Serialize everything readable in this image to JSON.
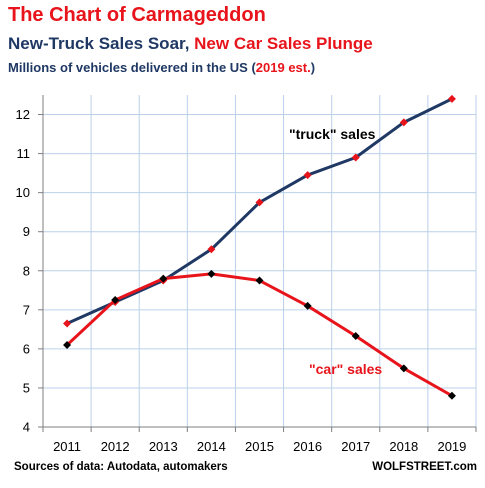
{
  "header": {
    "title": "The Chart of Carmageddon",
    "subtitle_part1": "New-Truck Sales Soar,",
    "subtitle_part2": "New Car Sales Plunge",
    "subtitle3_main": "Millions of vehicles delivered in the US (",
    "subtitle3_est": "2019 est.",
    "subtitle3_close": ")"
  },
  "footer": {
    "source": "Sources of data: Autodata, automakers",
    "brand": "WOLFSTREET.com"
  },
  "colors": {
    "title": "#e8141b",
    "navy": "#1f3864",
    "red": "#e8141b",
    "truck_line": "#1f3864",
    "car_line": "#e8141b",
    "truck_marker": "#e8141b",
    "car_marker": "#000000",
    "grid": "#bcd0ea"
  },
  "chart_data": {
    "type": "line",
    "x": [
      "2011",
      "2012",
      "2013",
      "2014",
      "2015",
      "2016",
      "2017",
      "2018",
      "2019"
    ],
    "ylim": [
      4,
      12.5
    ],
    "yticks": [
      4,
      5,
      6,
      7,
      8,
      9,
      10,
      11,
      12
    ],
    "grid": true,
    "series": [
      {
        "name": "\"truck\" sales",
        "values": [
          6.65,
          7.2,
          7.75,
          8.55,
          9.75,
          10.45,
          10.9,
          11.8,
          12.4
        ]
      },
      {
        "name": "\"car\" sales",
        "values": [
          6.1,
          7.25,
          7.8,
          7.92,
          7.75,
          7.1,
          6.33,
          5.5,
          4.8
        ]
      }
    ]
  }
}
